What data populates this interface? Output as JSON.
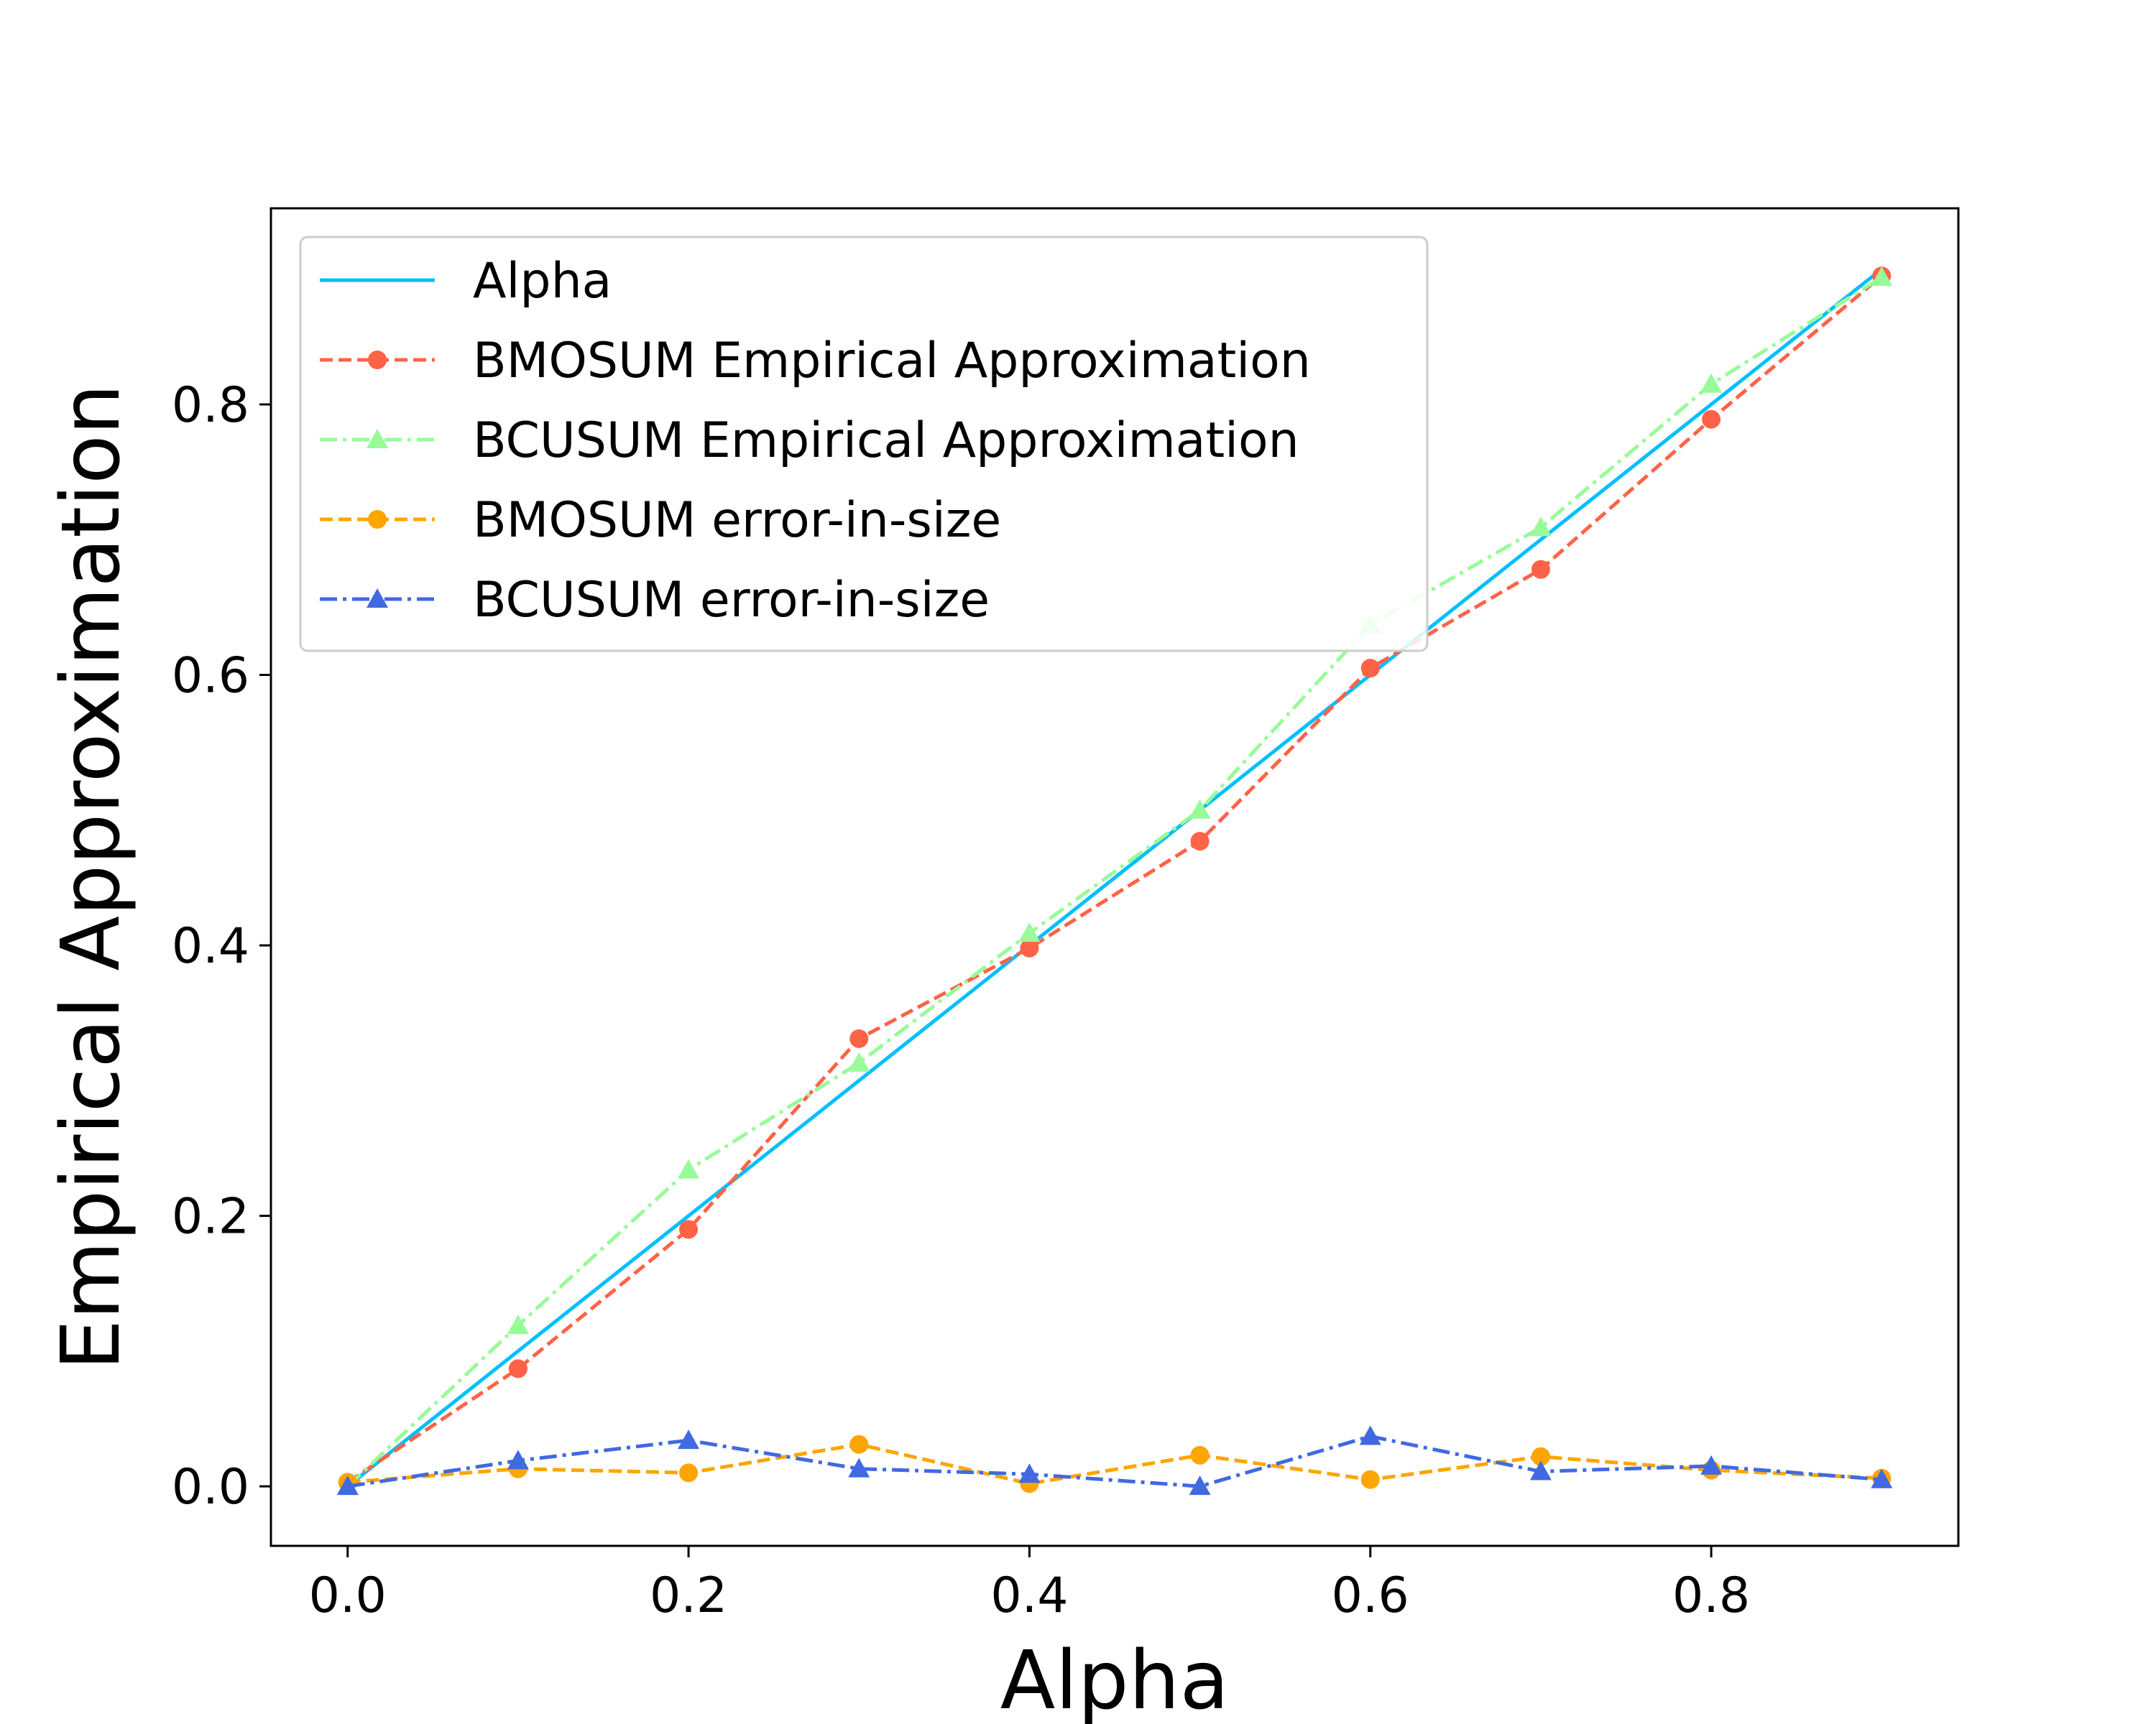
{
  "chart_data": {
    "type": "line",
    "title": "",
    "xlabel": "Alpha",
    "ylabel": "Empirical Approximation",
    "xlim": [
      -0.045,
      0.945
    ],
    "ylim": [
      -0.044,
      0.945
    ],
    "xticks": [
      "0.0",
      "0.2",
      "0.4",
      "0.6",
      "0.8"
    ],
    "xtick_values": [
      0.0,
      0.2,
      0.4,
      0.6,
      0.8
    ],
    "yticks": [
      "0.0",
      "0.2",
      "0.4",
      "0.6",
      "0.8"
    ],
    "ytick_values": [
      0.0,
      0.2,
      0.4,
      0.6,
      0.8
    ],
    "grid": false,
    "legend_position": "upper-left",
    "x": [
      0.0,
      0.1,
      0.2,
      0.3,
      0.4,
      0.5,
      0.6,
      0.7,
      0.8,
      0.9
    ],
    "series": [
      {
        "name": "Alpha",
        "color": "#00bfff",
        "linestyle": "solid",
        "marker": "none",
        "values": [
          0.0,
          0.1,
          0.2,
          0.3,
          0.4,
          0.5,
          0.6,
          0.7,
          0.8,
          0.9
        ]
      },
      {
        "name": "BMOSUM Empirical Approximation",
        "color": "#ff6347",
        "linestyle": "dashed",
        "marker": "circle",
        "values": [
          0.003,
          0.087,
          0.19,
          0.331,
          0.398,
          0.477,
          0.605,
          0.678,
          0.789,
          0.895
        ]
      },
      {
        "name": "BCUSUM Empirical Approximation",
        "color": "#98fb98",
        "linestyle": "dashdot",
        "marker": "triangle",
        "values": [
          0.0,
          0.119,
          0.234,
          0.313,
          0.409,
          0.5,
          0.637,
          0.709,
          0.815,
          0.894
        ]
      },
      {
        "name": "BMOSUM error-in-size",
        "color": "#ffa500",
        "linestyle": "dashed",
        "marker": "circle",
        "values": [
          0.003,
          0.013,
          0.01,
          0.031,
          0.002,
          0.023,
          0.005,
          0.022,
          0.012,
          0.006
        ]
      },
      {
        "name": "BCUSUM error-in-size",
        "color": "#4169e1",
        "linestyle": "dashdot",
        "marker": "triangle",
        "values": [
          0.0,
          0.019,
          0.034,
          0.013,
          0.009,
          0.0,
          0.037,
          0.011,
          0.015,
          0.005
        ]
      }
    ]
  }
}
